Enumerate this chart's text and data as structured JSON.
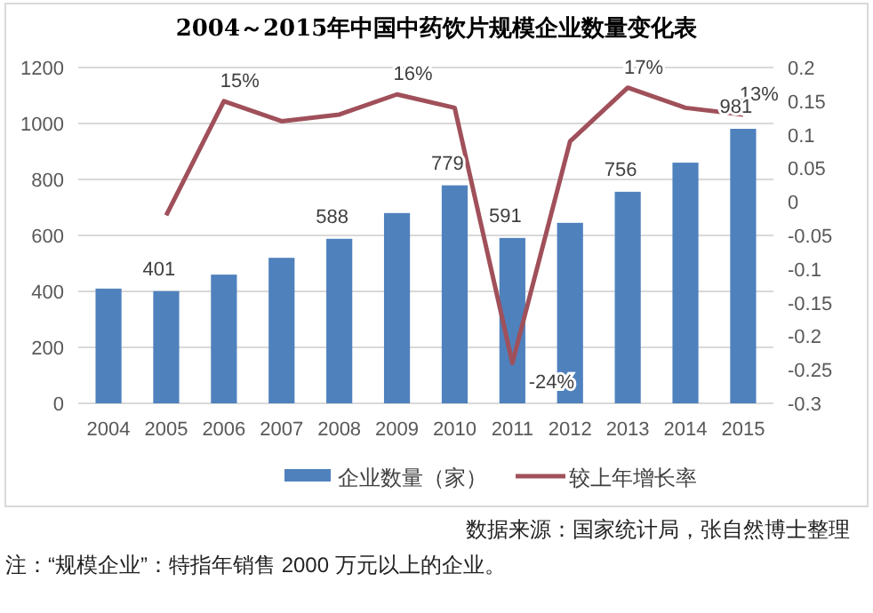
{
  "chart_data": {
    "type": "bar",
    "title": "2004～2015年中国中药饮片规模企业数量变化表",
    "categories": [
      "2004",
      "2005",
      "2006",
      "2007",
      "2008",
      "2009",
      "2010",
      "2011",
      "2012",
      "2013",
      "2014",
      "2015"
    ],
    "series": [
      {
        "name": "企业数量（家）",
        "type": "bar",
        "color": "#4f81bd",
        "values": [
          410,
          401,
          460,
          520,
          588,
          680,
          779,
          591,
          645,
          756,
          860,
          981
        ],
        "value_labels": [
          null,
          "401",
          null,
          null,
          "588",
          null,
          "779",
          "591",
          null,
          "756",
          null,
          "981"
        ]
      },
      {
        "name": "较上年增长率",
        "type": "line",
        "axis": "y2",
        "color": "#a0505a",
        "values": [
          null,
          -0.02,
          0.15,
          0.12,
          0.13,
          0.16,
          0.14,
          -0.24,
          0.09,
          0.17,
          0.14,
          0.13
        ],
        "value_labels": [
          null,
          null,
          "15%",
          null,
          null,
          "16%",
          null,
          "-24%",
          null,
          "17%",
          null,
          "13%"
        ]
      }
    ],
    "ylim": [
      0,
      1200
    ],
    "yticks": [
      0,
      200,
      400,
      600,
      800,
      1000,
      1200
    ],
    "y2lim": [
      -0.3,
      0.2
    ],
    "y2ticks": [
      -0.3,
      -0.25,
      -0.2,
      -0.15,
      -0.1,
      -0.05,
      0,
      0.05,
      0.1,
      0.15,
      0.2
    ],
    "grid": "y",
    "legend": "bottom",
    "marker": "none",
    "annotations": [
      "数据来源：国家统计局，张自然博士整理",
      "注：“规模企业”：特指年销售 2000 万元以上的企业。"
    ]
  }
}
